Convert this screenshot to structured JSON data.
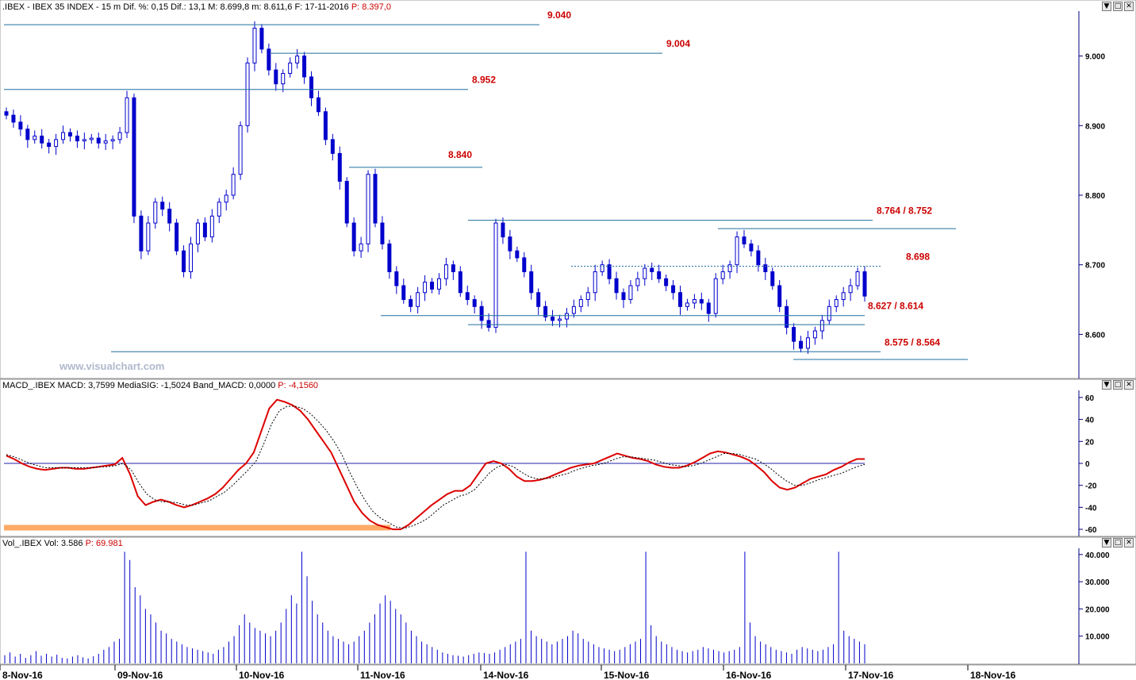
{
  "panels": {
    "price_header": ".IBEX - IBEX 35 INDEX -  15 m  Dif. %: 0,15  Dif.: 13,1  M: 8.699,8  m: 8.611,6  F: 17-11-2016",
    "price_header_p": "P: 8.397,0",
    "macd_header": "MACD_.IBEX  MACD: 3,7599  MediaSIG: -1,5024  Band_MACD: 0,0000",
    "macd_header_p": "P: -4,1560",
    "vol_header": "Vol_.IBEX  Vol: 3.586",
    "vol_header_p": "P: 69.981",
    "watermark": "www.visualchart.com",
    "window_buttons": [
      "▼",
      "□",
      "✕"
    ]
  },
  "colors": {
    "candle": "#0000cc",
    "level_line": "#1f6f9f",
    "level_label": "#cc0000",
    "macd": "#dd0000",
    "signal": "#000000",
    "axis": "#000080",
    "band": "#ffaa66"
  },
  "chart_data": [
    {
      "type": "candlestick",
      "x_dates": [
        "8-Nov-16",
        "09-Nov-16",
        "10-Nov-16",
        "11-Nov-16",
        "14-Nov-16",
        "15-Nov-16",
        "16-Nov-16",
        "17-Nov-16",
        "18-Nov-16"
      ],
      "y_ticks": [
        "8.600",
        "8.700",
        "8.800",
        "8.900",
        "9.000"
      ],
      "ylim": [
        8540,
        9060
      ],
      "levels": [
        {
          "label": "9.040",
          "values": [
            9045
          ]
        },
        {
          "label": "9.004",
          "values": [
            9004
          ]
        },
        {
          "label": "8.952",
          "values": [
            8952
          ]
        },
        {
          "label": "8.840",
          "values": [
            8840
          ]
        },
        {
          "label": "8.764 / 8.752",
          "values": [
            8764,
            8752
          ]
        },
        {
          "label": "8.698",
          "values": [
            8698
          ]
        },
        {
          "label": "8.627 / 8.614",
          "values": [
            8627,
            8614
          ]
        },
        {
          "label": "8.575 / 8.564",
          "values": [
            8575,
            8564
          ]
        }
      ],
      "close_path": [
        8915,
        8905,
        8895,
        8880,
        8885,
        8875,
        8870,
        8880,
        8890,
        8885,
        8878,
        8880,
        8882,
        8875,
        8878,
        8880,
        8890,
        8940,
        8770,
        8720,
        8760,
        8790,
        8780,
        8760,
        8720,
        8690,
        8730,
        8760,
        8740,
        8770,
        8790,
        8800,
        8830,
        8900,
        8990,
        9040,
        9010,
        8980,
        8960,
        8975,
        8990,
        9000,
        8970,
        8940,
        8920,
        8880,
        8860,
        8820,
        8760,
        8720,
        8730,
        8830,
        8760,
        8730,
        8690,
        8670,
        8650,
        8640,
        8660,
        8675,
        8665,
        8680,
        8700,
        8690,
        8660,
        8650,
        8640,
        8620,
        8610,
        8760,
        8740,
        8720,
        8710,
        8690,
        8660,
        8640,
        8625,
        8620,
        8622,
        8630,
        8640,
        8650,
        8660,
        8690,
        8700,
        8680,
        8660,
        8650,
        8670,
        8680,
        8695,
        8690,
        8680,
        8670,
        8660,
        8640,
        8645,
        8650,
        8645,
        8630,
        8680,
        8690,
        8700,
        8740,
        8730,
        8720,
        8700,
        8690,
        8670,
        8640,
        8610,
        8590,
        8580,
        8595,
        8605,
        8620,
        8640,
        8650,
        8660,
        8670,
        8690,
        8655
      ]
    },
    {
      "type": "line",
      "ylim": [
        -65,
        65
      ],
      "y_ticks": [
        60,
        40,
        20,
        0,
        -20,
        -40,
        -60
      ],
      "series": [
        {
          "name": "MACD",
          "values": [
            7,
            4,
            0,
            -3,
            -5,
            -6,
            -5,
            -4,
            -4,
            -5,
            -5,
            -4,
            -3,
            -2,
            -1,
            5,
            -10,
            -30,
            -38,
            -35,
            -33,
            -35,
            -38,
            -40,
            -38,
            -35,
            -32,
            -28,
            -22,
            -14,
            -6,
            0,
            10,
            30,
            50,
            58,
            56,
            53,
            48,
            40,
            30,
            20,
            10,
            -5,
            -20,
            -35,
            -45,
            -52,
            -56,
            -58,
            -60,
            -60,
            -56,
            -50,
            -44,
            -38,
            -33,
            -28,
            -25,
            -25,
            -20,
            -10,
            0,
            2,
            0,
            -5,
            -12,
            -16,
            -16,
            -15,
            -13,
            -10,
            -7,
            -4,
            -2,
            -1,
            0,
            3,
            6,
            9,
            7,
            5,
            4,
            2,
            -1,
            -3,
            -4,
            -4,
            -2,
            1,
            5,
            9,
            11,
            10,
            8,
            6,
            3,
            -2,
            -8,
            -16,
            -22,
            -24,
            -22,
            -18,
            -14,
            -12,
            -10,
            -6,
            -3,
            1,
            4,
            4
          ]
        },
        {
          "name": "MediaSIG",
          "values": [
            8,
            6,
            3,
            0,
            -2,
            -4,
            -4,
            -4,
            -4,
            -4,
            -4,
            -4,
            -3,
            -3,
            -2,
            0,
            -6,
            -18,
            -28,
            -33,
            -35,
            -35,
            -36,
            -38,
            -38,
            -36,
            -34,
            -30,
            -26,
            -20,
            -13,
            -6,
            2,
            18,
            36,
            48,
            52,
            52,
            50,
            45,
            38,
            30,
            20,
            8,
            -8,
            -22,
            -34,
            -44,
            -50,
            -54,
            -58,
            -59,
            -57,
            -54,
            -50,
            -44,
            -38,
            -34,
            -30,
            -28,
            -24,
            -16,
            -8,
            -3,
            -1,
            -3,
            -8,
            -12,
            -14,
            -14,
            -13,
            -11,
            -9,
            -6,
            -4,
            -2,
            -1,
            1,
            4,
            6,
            6,
            5,
            4,
            3,
            1,
            -1,
            -2,
            -3,
            -2,
            0,
            3,
            6,
            9,
            9,
            8,
            6,
            4,
            0,
            -5,
            -11,
            -16,
            -20,
            -20,
            -18,
            -15,
            -13,
            -11,
            -9,
            -6,
            -3,
            -1
          ]
        }
      ]
    },
    {
      "type": "bar",
      "ylim": [
        0,
        42000
      ],
      "y_ticks": [
        "10.000",
        "20.000",
        "30.000",
        "40.000"
      ],
      "values": [
        3000,
        4000,
        2500,
        3500,
        2000,
        3000,
        4500,
        2800,
        3500,
        2500,
        3200,
        2000,
        1800,
        2500,
        3000,
        2200,
        1800,
        2600,
        3500,
        5000,
        6000,
        8000,
        9000,
        41000,
        38000,
        28000,
        25000,
        20000,
        18000,
        15000,
        12000,
        11000,
        9000,
        8000,
        7000,
        6000,
        5500,
        5000,
        4500,
        4000,
        3500,
        5000,
        6000,
        8000,
        10000,
        14000,
        18000,
        15000,
        13000,
        12000,
        11000,
        10000,
        12000,
        15000,
        20000,
        25000,
        22000,
        41000,
        32000,
        23000,
        18000,
        15000,
        12000,
        10000,
        9000,
        8000,
        7000,
        8000,
        10000,
        12000,
        15000,
        18000,
        22000,
        25000,
        23000,
        20000,
        18000,
        15000,
        12000,
        10000,
        8000,
        7000,
        6000,
        5000,
        4000,
        3500,
        3000,
        2800,
        2500,
        3000,
        3500,
        4000,
        3800,
        3500,
        4000,
        5000,
        6000,
        7000,
        8000,
        9000,
        41000,
        12000,
        10000,
        9000,
        8000,
        7000,
        8000,
        9000,
        10000,
        12000,
        11000,
        9000,
        8000,
        7000,
        6000,
        5500,
        5000,
        4500,
        5000,
        6000,
        7000,
        8000,
        9000,
        41000,
        14000,
        10000,
        8000,
        7000,
        6000,
        5000,
        4500,
        4000,
        4500,
        5000,
        6000,
        5500,
        5000,
        4500,
        4000,
        4500,
        5000,
        6000,
        41000,
        15000,
        10000,
        8000,
        7000,
        6000,
        5000,
        4500,
        4000,
        3500,
        5000,
        6000,
        5500,
        5000,
        4500,
        5000,
        6000,
        7000,
        41000,
        12000,
        10000,
        9000,
        8000,
        7000
      ]
    }
  ]
}
